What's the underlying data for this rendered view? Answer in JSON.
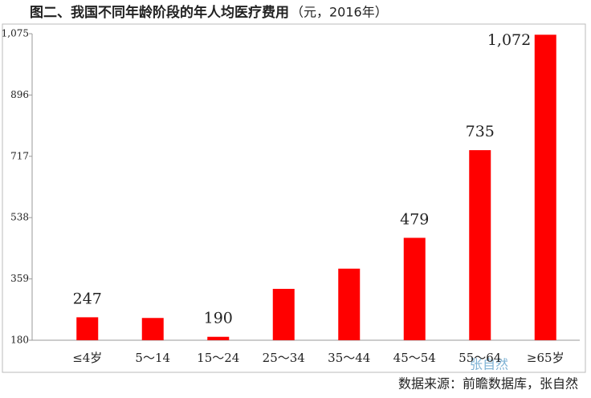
{
  "chart_data": {
    "type": "bar",
    "title": "图二、我国不同年龄阶段的年人均医疗费用",
    "title_unit": "（元，2016年）",
    "categories": [
      "≤4岁",
      "5～14",
      "15～24",
      "25～34",
      "35～44",
      "45～54",
      "55～64",
      "≥65岁"
    ],
    "values": [
      247,
      245,
      190,
      330,
      389,
      479,
      735,
      1072
    ],
    "value_labels": [
      "247",
      null,
      "190",
      null,
      null,
      "479",
      "735",
      "1,072"
    ],
    "color": "#ff0000",
    "ylim": [
      180,
      1075
    ],
    "yticks": [
      180,
      359,
      538,
      717,
      896,
      {
        "value": 1075,
        "label": "1,075"
      }
    ],
    "source": "数据来源：前瞻数据库，张自然",
    "watermark": "张自然"
  }
}
